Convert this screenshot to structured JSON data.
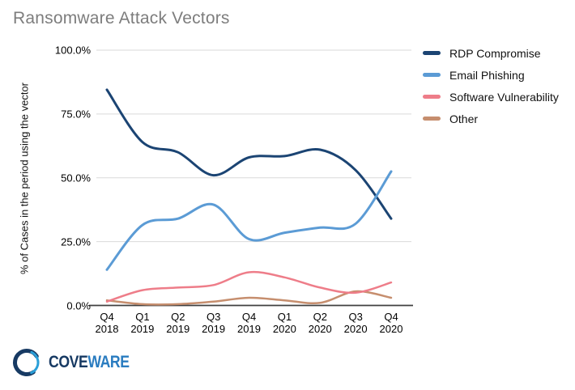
{
  "title": "Ransomware Attack Vectors",
  "colors": {
    "title_gray": "#7d7d7d",
    "grid": "#d9d9d9",
    "axis": "#3f3f3f",
    "tick_text": "#000000",
    "navy": "#1b4473",
    "blue": "#5b9bd5",
    "pink": "#ee7d89",
    "tan": "#c68e6e",
    "logo_navy": "#173a63",
    "logo_blue": "#2a7cc0"
  },
  "chart_data": {
    "type": "line",
    "title": "Ransomware Attack Vectors",
    "xlabel": "",
    "ylabel": "% of Cases in the period using the vector",
    "ylim": [
      0,
      100
    ],
    "grid": true,
    "legend_position": "right",
    "y_ticks": [
      {
        "value": 0,
        "label": "0.0%"
      },
      {
        "value": 25,
        "label": "25.0%"
      },
      {
        "value": 50,
        "label": "50.0%"
      },
      {
        "value": 75,
        "label": "75.0%"
      },
      {
        "value": 100,
        "label": "100.0%"
      }
    ],
    "categories": [
      "Q4 2018",
      "Q1 2019",
      "Q2 2019",
      "Q3 2019",
      "Q4 2019",
      "Q1 2020",
      "Q2 2020",
      "Q3 2020",
      "Q4 2020"
    ],
    "series": [
      {
        "name": "RDP Compromise",
        "color": "#1b4473",
        "width": 3,
        "values": [
          84.5,
          64,
          60,
          51,
          58,
          58.5,
          61,
          53,
          34
        ]
      },
      {
        "name": "Email Phishing",
        "color": "#5b9bd5",
        "width": 3,
        "values": [
          14,
          31.5,
          34,
          39.5,
          26,
          28.5,
          30.5,
          32,
          52.5
        ]
      },
      {
        "name": "Software Vulnerability",
        "color": "#ee7d89",
        "width": 2.5,
        "values": [
          1.5,
          6,
          7,
          8,
          13,
          11,
          7,
          5,
          9
        ]
      },
      {
        "name": "Other",
        "color": "#c68e6e",
        "width": 2.5,
        "values": [
          2,
          0.5,
          0.5,
          1.5,
          3,
          2,
          1,
          5.5,
          3
        ]
      }
    ]
  },
  "logo": {
    "part1": "COVE",
    "part2": "WARE"
  }
}
